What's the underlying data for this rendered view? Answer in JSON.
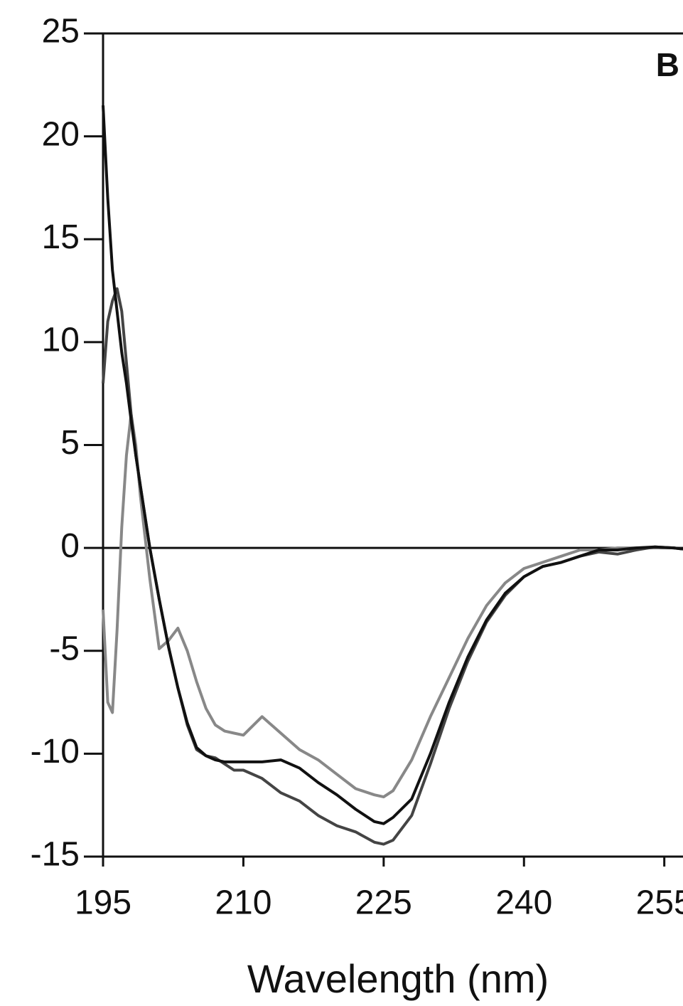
{
  "chart_data": {
    "type": "line",
    "annotation": "B",
    "xlabel": "Wavelength (nm)",
    "x": [
      195,
      195.5,
      196,
      196.5,
      197,
      197.5,
      198,
      198.5,
      199,
      199.5,
      200,
      201,
      202,
      203,
      204,
      205,
      206,
      207,
      208,
      209,
      210,
      212,
      214,
      216,
      218,
      220,
      222,
      224,
      225,
      226,
      228,
      230,
      232,
      234,
      236,
      238,
      240,
      242,
      244,
      246,
      248,
      250,
      252,
      254,
      256,
      257
    ],
    "series": [
      {
        "color": "#888888",
        "values": [
          -3,
          -7.5,
          -8,
          -4,
          1,
          4.5,
          6.5,
          5,
          2.5,
          0.5,
          -1.5,
          -4.9,
          -4.5,
          -3.9,
          -5,
          -6.5,
          -7.8,
          -8.6,
          -8.9,
          -9,
          -9.1,
          -8.2,
          -9,
          -9.8,
          -10.3,
          -11,
          -11.7,
          -12,
          -12.1,
          -11.8,
          -10.3,
          -8.2,
          -6.3,
          -4.4,
          -2.8,
          -1.7,
          -1,
          -0.7,
          -0.4,
          -0.1,
          -0.1,
          0,
          0,
          0,
          0,
          -0.05
        ]
      },
      {
        "color": "#444444",
        "values": [
          8,
          11,
          12,
          12.6,
          11.5,
          9,
          6.5,
          4.5,
          3,
          1.5,
          0,
          -2.5,
          -4.8,
          -6.8,
          -8.6,
          -9.8,
          -10.1,
          -10.2,
          -10.5,
          -10.8,
          -10.8,
          -11.2,
          -11.9,
          -12.3,
          -13,
          -13.5,
          -13.8,
          -14.3,
          -14.4,
          -14.2,
          -13,
          -10.5,
          -7.8,
          -5.5,
          -3.6,
          -2.3,
          -1.4,
          -0.9,
          -0.7,
          -0.4,
          -0.2,
          -0.3,
          -0.1,
          0.05,
          0,
          -0.05
        ]
      },
      {
        "color": "#111111",
        "values": [
          21.5,
          17,
          13.5,
          11.5,
          9.5,
          8,
          6.2,
          4.5,
          3,
          1.5,
          0,
          -2.5,
          -4.8,
          -6.8,
          -8.5,
          -9.7,
          -10.1,
          -10.3,
          -10.4,
          -10.4,
          -10.4,
          -10.4,
          -10.3,
          -10.7,
          -11.4,
          -12,
          -12.7,
          -13.3,
          -13.4,
          -13.1,
          -12.2,
          -10,
          -7.5,
          -5.3,
          -3.5,
          -2.2,
          -1.4,
          -0.9,
          -0.7,
          -0.4,
          -0.1,
          -0.1,
          0,
          0.05,
          0,
          -0.05
        ]
      }
    ],
    "xlim": [
      195,
      257
    ],
    "xticks": [
      195,
      210,
      225,
      240,
      255
    ],
    "ylim": [
      -15,
      25
    ],
    "yticks": [
      -15,
      -10,
      -5,
      0,
      5,
      10,
      15,
      20,
      25
    ]
  }
}
